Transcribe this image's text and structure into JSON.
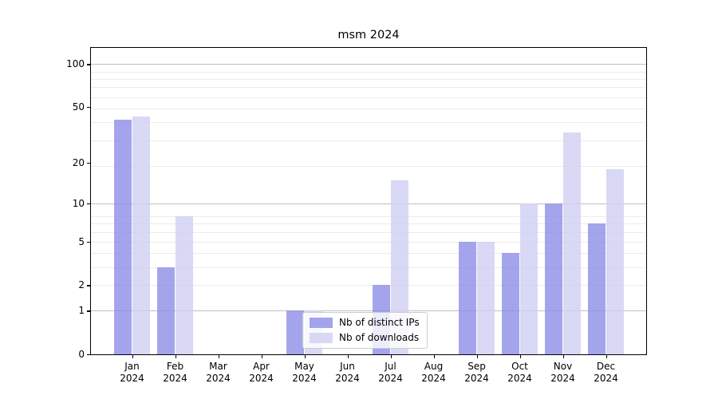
{
  "figure": {
    "background": "#ffffff",
    "axis_color": "#000000"
  },
  "chart_data": {
    "type": "bar",
    "title": "msm 2024",
    "scale": "log1p",
    "categories": [
      "Jan",
      "Feb",
      "Mar",
      "Apr",
      "May",
      "Jun",
      "Jul",
      "Aug",
      "Sep",
      "Oct",
      "Nov",
      "Dec"
    ],
    "year": "2024",
    "series": [
      {
        "name": "Nb of distinct IPs",
        "color": "rgba(141,141,232,0.8)",
        "color_solid": "#a5a5ec",
        "values": [
          41,
          3,
          0,
          0,
          1,
          0,
          2,
          0,
          5,
          4,
          10,
          7
        ]
      },
      {
        "name": "Nb of downloads",
        "color": "rgba(207,207,243,0.8)",
        "color_solid": "#d9d9f6",
        "values": [
          43,
          8,
          0,
          0,
          1,
          0,
          15,
          0,
          5,
          10,
          33,
          18
        ]
      }
    ],
    "yticks": [
      0,
      1,
      2,
      5,
      10,
      20,
      50,
      100
    ],
    "ymax": 130,
    "major_gridlines": [
      1,
      10,
      100
    ],
    "major_grid_color": "#c0c0c0",
    "minor_grid_color": "#ececec",
    "grid": "horizontal",
    "legend_position": "lower center"
  }
}
